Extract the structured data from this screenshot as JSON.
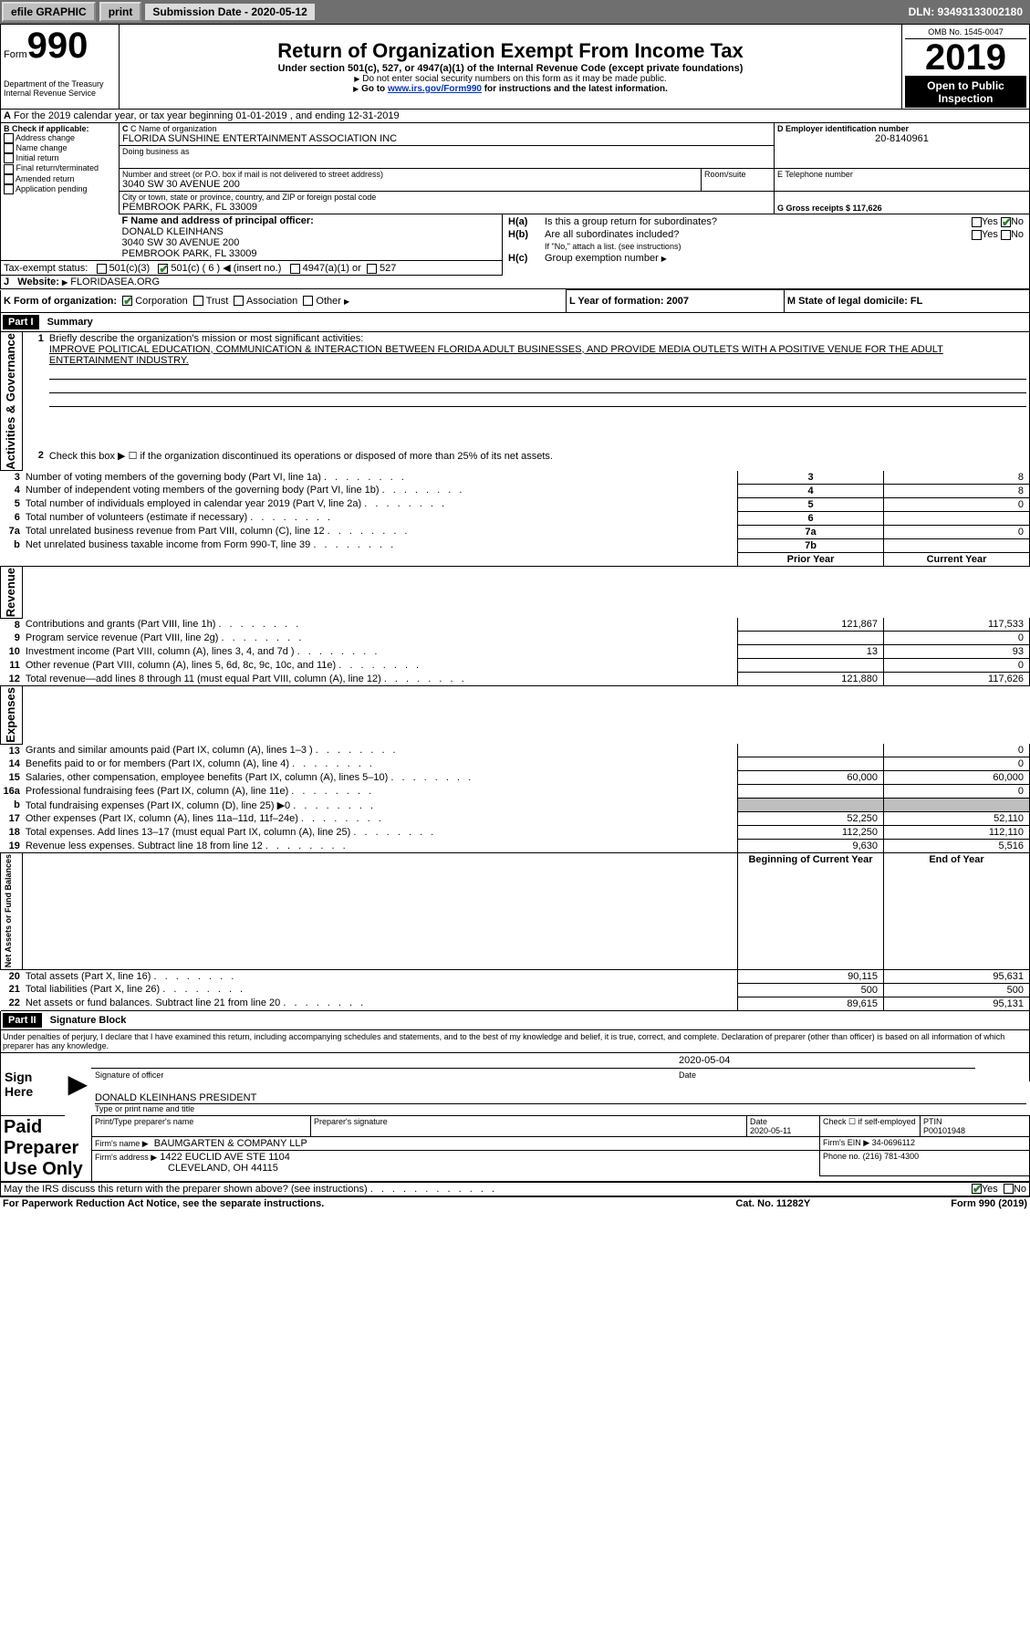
{
  "topbar": {
    "efile": "efile GRAPHIC",
    "print": "print",
    "sub_date_label": "Submission Date - 2020-05-12",
    "dln": "DLN: 93493133002180"
  },
  "header": {
    "form_label": "Form",
    "form_num": "990",
    "dept1": "Department of the Treasury",
    "dept2": "Internal Revenue Service",
    "title": "Return of Organization Exempt From Income Tax",
    "subtitle": "Under section 501(c), 527, or 4947(a)(1) of the Internal Revenue Code (except private foundations)",
    "note1": "Do not enter social security numbers on this form as it may be made public.",
    "note2_a": "Go to ",
    "note2_link": "www.irs.gov/Form990",
    "note2_b": " for instructions and the latest information.",
    "omb": "OMB No. 1545-0047",
    "year": "2019",
    "open": "Open to Public Inspection"
  },
  "line_a": "For the 2019 calendar year, or tax year beginning 01-01-2019    , and ending 12-31-2019",
  "box_b": {
    "label": "B Check if applicable:",
    "items": [
      "Address change",
      "Name change",
      "Initial return",
      "Final return/terminated",
      "Amended return",
      "Application pending"
    ]
  },
  "box_c": {
    "name_label": "C Name of organization",
    "name": "FLORIDA SUNSHINE ENTERTAINMENT ASSOCIATION INC",
    "dba_label": "Doing business as",
    "addr_label": "Number and street (or P.O. box if mail is not delivered to street address)",
    "room_label": "Room/suite",
    "addr": "3040 SW 30 AVENUE 200",
    "city_label": "City or town, state or province, country, and ZIP or foreign postal code",
    "city": "PEMBROOK PARK, FL  33009"
  },
  "box_d": {
    "label": "D Employer identification number",
    "value": "20-8140961"
  },
  "box_e": {
    "label": "E Telephone number",
    "value": ""
  },
  "box_g": {
    "label": "G Gross receipts $ 117,626"
  },
  "box_f": {
    "label": "F  Name and address of principal officer:",
    "line1": "DONALD KLEINHANS",
    "line2": "3040 SW 30 AVENUE 200",
    "line3": "PEMBROOK PARK, FL  33009"
  },
  "box_h": {
    "ha_label": "Is this a group return for subordinates?",
    "ha_prefix": "H(a)",
    "hb_prefix": "H(b)",
    "hb_label": "Are all subordinates included?",
    "hb_note": "If \"No,\" attach a list. (see instructions)",
    "hc_prefix": "H(c)",
    "hc_label": "Group exemption number",
    "yes": "Yes",
    "no": "No"
  },
  "tax_exempt": {
    "label": "Tax-exempt status:",
    "o1": "501(c)(3)",
    "o2": "501(c) ( 6 ) ◀ (insert no.)",
    "o3": "4947(a)(1) or",
    "o4": "527"
  },
  "box_j": {
    "label": "Website:",
    "value": "FLORIDASEA.ORG"
  },
  "box_k": {
    "label": "K Form of organization:",
    "o1": "Corporation",
    "o2": "Trust",
    "o3": "Association",
    "o4": "Other"
  },
  "box_l": {
    "label": "L Year of formation: 2007"
  },
  "box_m": {
    "label": "M State of legal domicile: FL"
  },
  "part1": {
    "header": "Part I",
    "title": "Summary",
    "line1_label": "Briefly describe the organization's mission or most significant activities:",
    "line1_text": "IMPROVE POLITICAL EDUCATION, COMMUNICATION & INTERACTION BETWEEN FLORIDA ADULT BUSINESSES, AND PROVIDE MEDIA OUTLETS WITH A POSITIVE VENUE FOR THE ADULT ENTERTAINMENT INDUSTRY.",
    "line2": "Check this box ▶ ☐  if the organization discontinued its operations or disposed of more than 25% of its net assets.",
    "sections": {
      "activities": "Activities & Governance",
      "revenue": "Revenue",
      "expenses": "Expenses",
      "net": "Net Assets or Fund Balances"
    },
    "col_prior": "Prior Year",
    "col_current": "Current Year",
    "col_begin": "Beginning of Current Year",
    "col_end": "End of Year",
    "rows_top": [
      {
        "n": "3",
        "t": "Number of voting members of the governing body (Part VI, line 1a)",
        "box": "3",
        "v": "8"
      },
      {
        "n": "4",
        "t": "Number of independent voting members of the governing body (Part VI, line 1b)",
        "box": "4",
        "v": "8"
      },
      {
        "n": "5",
        "t": "Total number of individuals employed in calendar year 2019 (Part V, line 2a)",
        "box": "5",
        "v": "0"
      },
      {
        "n": "6",
        "t": "Total number of volunteers (estimate if necessary)",
        "box": "6",
        "v": ""
      },
      {
        "n": "7a",
        "t": "Total unrelated business revenue from Part VIII, column (C), line 12",
        "box": "7a",
        "v": "0"
      },
      {
        "n": "b",
        "t": "Net unrelated business taxable income from Form 990-T, line 39",
        "box": "7b",
        "v": ""
      }
    ],
    "rows_rev": [
      {
        "n": "8",
        "t": "Contributions and grants (Part VIII, line 1h)",
        "py": "121,867",
        "cy": "117,533"
      },
      {
        "n": "9",
        "t": "Program service revenue (Part VIII, line 2g)",
        "py": "",
        "cy": "0"
      },
      {
        "n": "10",
        "t": "Investment income (Part VIII, column (A), lines 3, 4, and 7d )",
        "py": "13",
        "cy": "93"
      },
      {
        "n": "11",
        "t": "Other revenue (Part VIII, column (A), lines 5, 6d, 8c, 9c, 10c, and 11e)",
        "py": "",
        "cy": "0"
      },
      {
        "n": "12",
        "t": "Total revenue—add lines 8 through 11 (must equal Part VIII, column (A), line 12)",
        "py": "121,880",
        "cy": "117,626"
      }
    ],
    "rows_exp": [
      {
        "n": "13",
        "t": "Grants and similar amounts paid (Part IX, column (A), lines 1–3 )",
        "py": "",
        "cy": "0"
      },
      {
        "n": "14",
        "t": "Benefits paid to or for members (Part IX, column (A), line 4)",
        "py": "",
        "cy": "0"
      },
      {
        "n": "15",
        "t": "Salaries, other compensation, employee benefits (Part IX, column (A), lines 5–10)",
        "py": "60,000",
        "cy": "60,000"
      },
      {
        "n": "16a",
        "t": "Professional fundraising fees (Part IX, column (A), line 11e)",
        "py": "",
        "cy": "0"
      },
      {
        "n": "b",
        "t": "Total fundraising expenses (Part IX, column (D), line 25) ▶0",
        "py": "grey",
        "cy": "grey"
      },
      {
        "n": "17",
        "t": "Other expenses (Part IX, column (A), lines 11a–11d, 11f–24e)",
        "py": "52,250",
        "cy": "52,110"
      },
      {
        "n": "18",
        "t": "Total expenses. Add lines 13–17 (must equal Part IX, column (A), line 25)",
        "py": "112,250",
        "cy": "112,110"
      },
      {
        "n": "19",
        "t": "Revenue less expenses. Subtract line 18 from line 12",
        "py": "9,630",
        "cy": "5,516"
      }
    ],
    "rows_net": [
      {
        "n": "20",
        "t": "Total assets (Part X, line 16)",
        "py": "90,115",
        "cy": "95,631"
      },
      {
        "n": "21",
        "t": "Total liabilities (Part X, line 26)",
        "py": "500",
        "cy": "500"
      },
      {
        "n": "22",
        "t": "Net assets or fund balances. Subtract line 21 from line 20",
        "py": "89,615",
        "cy": "95,131"
      }
    ]
  },
  "part2": {
    "header": "Part II",
    "title": "Signature Block",
    "decl": "Under penalties of perjury, I declare that I have examined this return, including accompanying schedules and statements, and to the best of my knowledge and belief, it is true, correct, and complete. Declaration of preparer (other than officer) is based on all information of which preparer has any knowledge.",
    "sign_here": "Sign Here",
    "sig_of_officer": "Signature of officer",
    "date_label": "Date",
    "sig_date": "2020-05-04",
    "officer_name": "DONALD KLEINHANS  PRESIDENT",
    "type_name": "Type or print name and title",
    "paid": "Paid Preparer Use Only",
    "prep_name_label": "Print/Type preparer's name",
    "prep_sig_label": "Preparer's signature",
    "prep_date": "2020-05-11",
    "check_self": "Check ☐ if self-employed",
    "ptin_label": "PTIN",
    "ptin": "P00101948",
    "firm_name_label": "Firm's name   ▶",
    "firm_name": "BAUMGARTEN & COMPANY LLP",
    "firm_ein_label": "Firm's EIN ▶",
    "firm_ein": "34-0696112",
    "firm_addr_label": "Firm's address ▶",
    "firm_addr1": "1422 EUCLID AVE STE 1104",
    "firm_addr2": "CLEVELAND, OH  44115",
    "phone_label": "Phone no.",
    "phone": "(216) 781-4300",
    "discuss": "May the IRS discuss this return with the preparer shown above? (see instructions)",
    "yes": "Yes",
    "no": "No"
  },
  "footer": {
    "paperwork": "For Paperwork Reduction Act Notice, see the separate instructions.",
    "cat": "Cat. No. 11282Y",
    "form": "Form 990 (2019)"
  }
}
